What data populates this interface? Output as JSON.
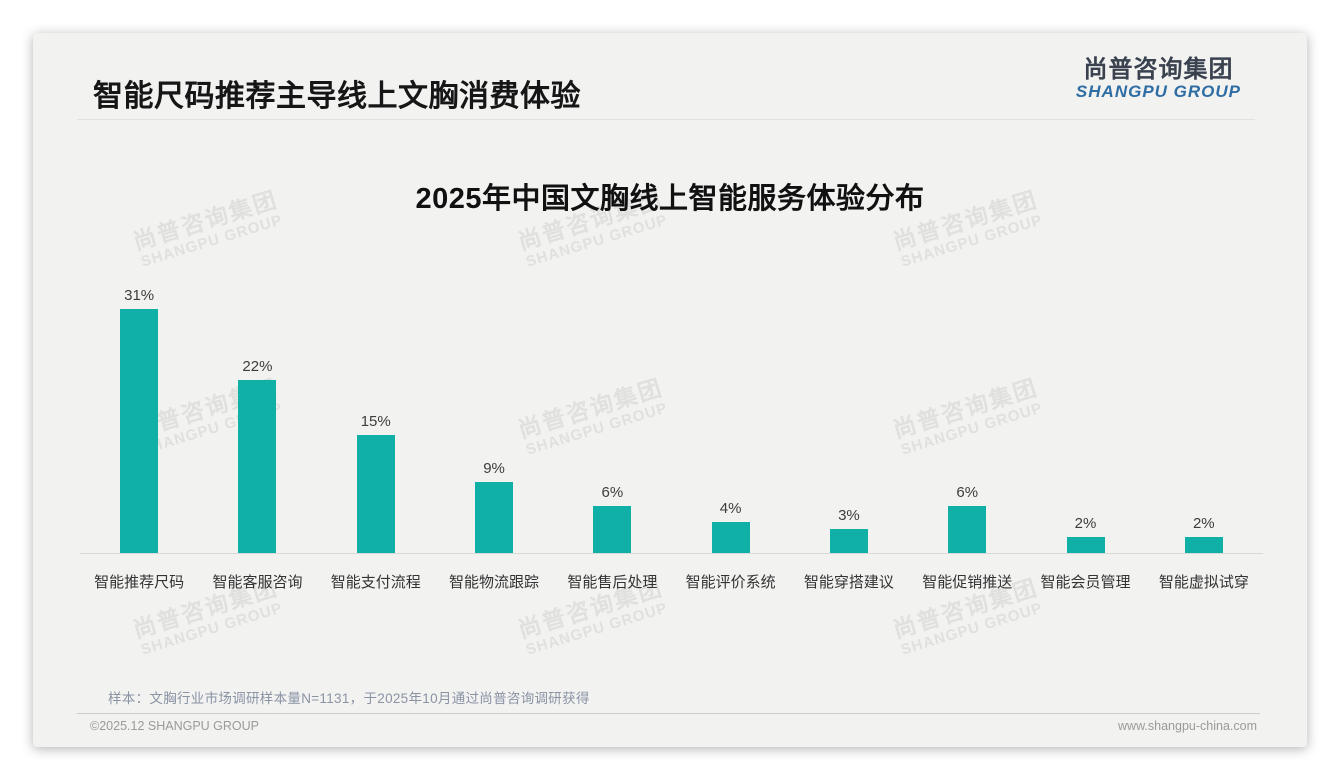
{
  "page": {
    "title": "智能尺码推荐主导线上文胸消费体验",
    "logo": {
      "cn": "尚普咨询集团",
      "en": "SHANGPU GROUP"
    },
    "watermark": {
      "cn": "尚普咨询集团",
      "en": "SHANGPU GROUP"
    },
    "note": "样本：文胸行业市场调研样本量N=1131，于2025年10月通过尚普咨询调研获得",
    "footer": {
      "copyright": "©2025.12 SHANGPU GROUP",
      "website": "www.shangpu-china.com"
    }
  },
  "chart_data": {
    "type": "bar",
    "title": "2025年中国文胸线上智能服务体验分布",
    "categories": [
      "智能推荐尺码",
      "智能客服咨询",
      "智能支付流程",
      "智能物流跟踪",
      "智能售后处理",
      "智能评价系统",
      "智能穿搭建议",
      "智能促销推送",
      "智能会员管理",
      "智能虚拟试穿"
    ],
    "values": [
      31,
      22,
      15,
      9,
      6,
      4,
      3,
      6,
      2,
      2
    ],
    "unit": "%",
    "bar_color": "#10B0A6",
    "xlabel": "",
    "ylabel": "",
    "ylim": [
      0,
      33
    ],
    "grid": false,
    "legend": false,
    "value_labels_shown": true
  },
  "colors": {
    "accent_teal": "#10B0A6",
    "logo_cn": "#39424e",
    "logo_en": "#2e6da4",
    "card_bg": "#f2f2f1"
  }
}
